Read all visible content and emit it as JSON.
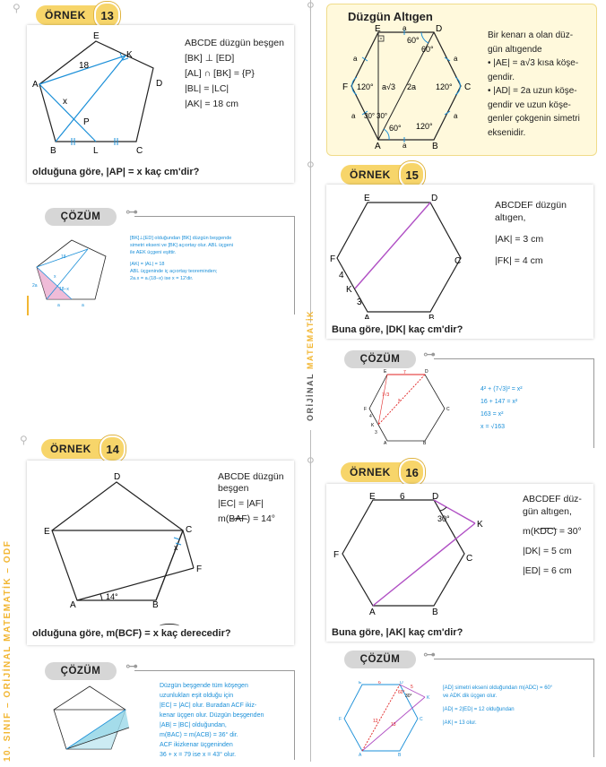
{
  "ex13": {
    "label": "ÖRNEK",
    "number": "13",
    "lines": [
      "ABCDE düzgün beşgen",
      "[BK] ⊥ [ED]",
      "[AL] ∩ [BK] = {P}",
      "|BL| = |LC|",
      "|AK| = 18 cm"
    ],
    "question": "olduğuna göre, |AP| = x kaç cm'dir?",
    "points": {
      "E": "E",
      "K": "K",
      "A": "A",
      "D": "D",
      "P": "P",
      "B": "B",
      "L": "L",
      "C": "C"
    },
    "len18": "18",
    "x": "x"
  },
  "sol13": {
    "label": "ÇÖZÜM",
    "lines": [
      "[BK]⊥[ED] olduğundan [BK] düzgün beşgende",
      "simetri ekseni ve [BK] açıortay olur. ABL üçgeni",
      "ile AEK üçgeni eşittir.",
      "",
      "|AK| = |AL| = 18",
      "ABL üçgeninde iç açıortay teoreminden;",
      "2a.x = a.(18–x) ise x = 12'dir."
    ],
    "fig": {
      "n18": "18",
      "x": "x",
      "n18x": "18–x",
      "a2": "2a",
      "a": "a"
    }
  },
  "hexinfo": {
    "title": "Düzgün Altıgen",
    "lines": [
      "Bir kenarı a olan düz-",
      "gün altıgende",
      "• |AE| = a√3 kısa köşe-",
      "gendir.",
      "• |AD| = 2a uzun köşe-",
      "gendir ve uzun köşe-",
      "genler çokgenin simetri",
      "eksenidir."
    ],
    "fig": {
      "E": "E",
      "D": "D",
      "F": "F",
      "C": "C",
      "A": "A",
      "B": "B",
      "a": "a",
      "d60": "60°",
      "d120": "120°",
      "d30": "30°",
      "av3": "a√3",
      "twoa": "2a"
    }
  },
  "ex14": {
    "label": "ÖRNEK",
    "number": "14",
    "lines": [
      "ABCDE düzgün",
      "beşgen",
      "|EC| = |AF|",
      "m(BAF) = 14°"
    ],
    "question": "olduğuna göre, m(BCF) = x kaç derecedir?",
    "points": {
      "D": "D",
      "E": "E",
      "C": "C",
      "F": "F",
      "A": "A",
      "B": "B"
    },
    "angle": "14°",
    "x": "x"
  },
  "sol14": {
    "label": "ÇÖZÜM",
    "lines": [
      "Düzgün beşgende tüm köşegen",
      "uzunlukları eşit olduğu için",
      "|EC| = |AC| olur. Buradan ACF ikiz-",
      "kenar üçgen olur. Düzgün beşgenden",
      "|AB| = |BC| olduğundan,",
      "m(BAC) = m(ACB) = 36° dir.",
      "ACF ikizkenar üçgeninden",
      "36 + x = 79 ise x = 43° olur."
    ]
  },
  "ex15": {
    "label": "ÖRNEK",
    "number": "15",
    "lines": [
      "ABCDEF düzgün",
      "altıgen,",
      "|AK| = 3 cm",
      "|FK| = 4 cm"
    ],
    "question": "Buna göre, |DK| kaç cm'dir?",
    "points": {
      "E": "E",
      "D": "D",
      "F": "F",
      "C": "C",
      "K": "K",
      "A": "A",
      "B": "B"
    },
    "n4": "4",
    "n3": "3"
  },
  "sol15": {
    "label": "ÇÖZÜM",
    "lines": [
      "4² + (7√3)² = x²",
      "16 + 147 = x²",
      "163 = x²",
      "x = √163"
    ],
    "fig": {
      "E": "E",
      "D": "D",
      "F": "F",
      "C": "C",
      "K": "K",
      "A": "A",
      "B": "B",
      "n7": "7",
      "n4": "4",
      "n3": "3",
      "x": "x",
      "v3": "7√3"
    }
  },
  "ex16": {
    "label": "ÖRNEK",
    "number": "16",
    "lines": [
      "ABCDEF düz-",
      "gün altıgen,",
      "m(KDC) = 30°",
      "|DK| = 5 cm",
      "|ED| = 6 cm"
    ],
    "question": "Buna göre, |AK| kaç cm'dir?",
    "points": {
      "E": "E",
      "D": "D",
      "F": "F",
      "C": "C",
      "K": "K",
      "A": "A",
      "B": "B"
    },
    "n6": "6",
    "d30": "30°"
  },
  "sol16": {
    "label": "ÇÖZÜM",
    "lines": [
      "[AD] simetri ekseni olduğundan m(ADC) = 60°",
      "ve ADK dik üçgen olur.",
      "",
      "|AD| = 2|ED| = 12 olduğundan",
      "",
      "|AK| = 13 olur."
    ],
    "fig": {
      "E": "E",
      "D": "D",
      "F": "F",
      "C": "C",
      "K": "K",
      "A": "A",
      "B": "B",
      "n6": "6",
      "n12": "12",
      "n13": "13",
      "n5": "5",
      "d60": "60°",
      "d30": "30°"
    }
  },
  "side": {
    "prefix": "10. SINIF – ORİJİNAL ",
    "accent": "MATEMATİK",
    "suffix": " – ODF"
  },
  "center": {
    "prefix": "ORİJİNAL ",
    "accent": "MATEMATİK"
  },
  "colors": {
    "accent": "#f2b632",
    "blue": "#1a8fd8",
    "purple": "#b04fc4",
    "red": "#e02020",
    "teal": "#2aa6a6"
  }
}
